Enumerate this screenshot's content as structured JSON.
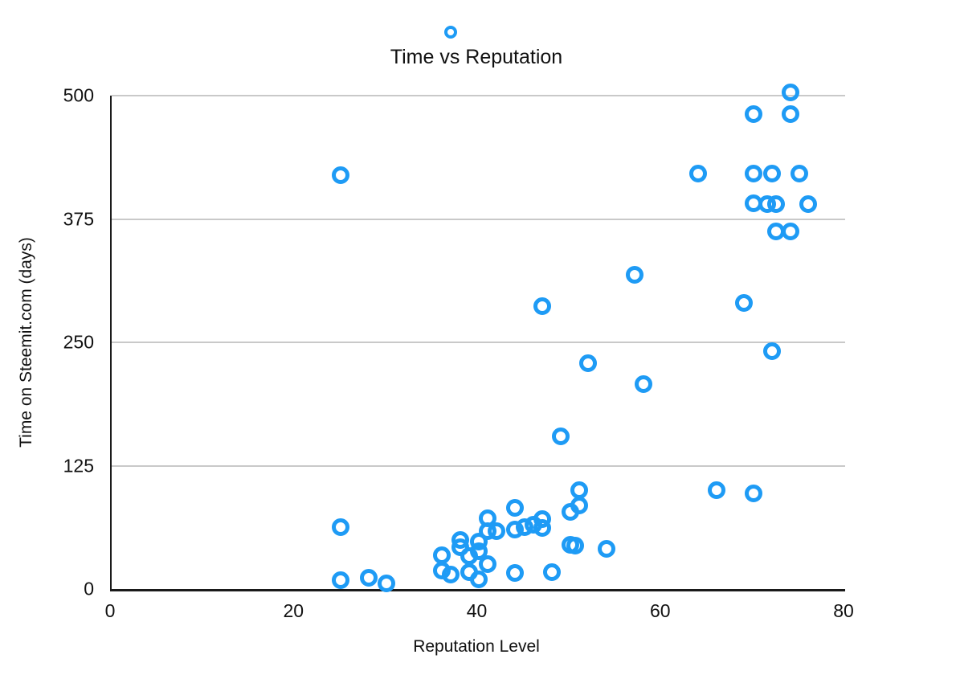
{
  "colors": {
    "marker": "#1e9bf5",
    "gridline": "#c9c9c9",
    "axis": "#1a1a1a",
    "text": "#111111"
  },
  "chart_data": {
    "type": "scatter",
    "title": "Time vs Reputation",
    "xlabel": "Reputation Level",
    "ylabel": "Time on Steemit.com (days)",
    "xlim": [
      0,
      80
    ],
    "ylim": [
      0,
      500
    ],
    "x_ticks": [
      0,
      20,
      40,
      60,
      80
    ],
    "y_ticks": [
      0,
      125,
      250,
      375,
      500
    ],
    "grid": "horizontal-only",
    "legend": false,
    "marker_style": "open-circle",
    "note": "one small outlier marker rendered above the plot top edge",
    "points": [
      [
        37,
        564,
        "small"
      ],
      [
        25,
        419
      ],
      [
        74,
        503
      ],
      [
        70,
        481
      ],
      [
        74,
        481
      ],
      [
        64,
        421
      ],
      [
        70,
        421
      ],
      [
        72,
        421
      ],
      [
        75,
        421
      ],
      [
        70,
        391
      ],
      [
        71.5,
        390
      ],
      [
        72.5,
        390
      ],
      [
        76,
        390
      ],
      [
        72.5,
        362
      ],
      [
        74,
        362
      ],
      [
        57,
        318
      ],
      [
        47,
        287
      ],
      [
        69,
        290
      ],
      [
        72,
        241
      ],
      [
        52,
        229
      ],
      [
        58,
        208
      ],
      [
        49,
        155
      ],
      [
        66,
        100
      ],
      [
        70,
        97
      ],
      [
        25,
        63
      ],
      [
        25,
        9
      ],
      [
        28,
        11
      ],
      [
        30,
        6
      ],
      [
        36,
        34
      ],
      [
        36,
        19
      ],
      [
        37,
        15
      ],
      [
        38,
        50
      ],
      [
        38,
        42
      ],
      [
        39,
        17
      ],
      [
        39,
        33
      ],
      [
        40,
        48
      ],
      [
        40,
        38
      ],
      [
        40,
        10
      ],
      [
        41,
        72
      ],
      [
        41,
        25
      ],
      [
        41,
        59
      ],
      [
        42,
        59
      ],
      [
        44,
        60
      ],
      [
        44,
        82
      ],
      [
        44,
        16
      ],
      [
        45,
        63
      ],
      [
        46,
        65
      ],
      [
        47,
        71
      ],
      [
        47,
        62
      ],
      [
        48,
        17
      ],
      [
        50,
        78
      ],
      [
        50,
        45
      ],
      [
        50.6,
        44
      ],
      [
        51,
        100
      ],
      [
        51,
        85
      ],
      [
        54,
        41
      ]
    ]
  }
}
